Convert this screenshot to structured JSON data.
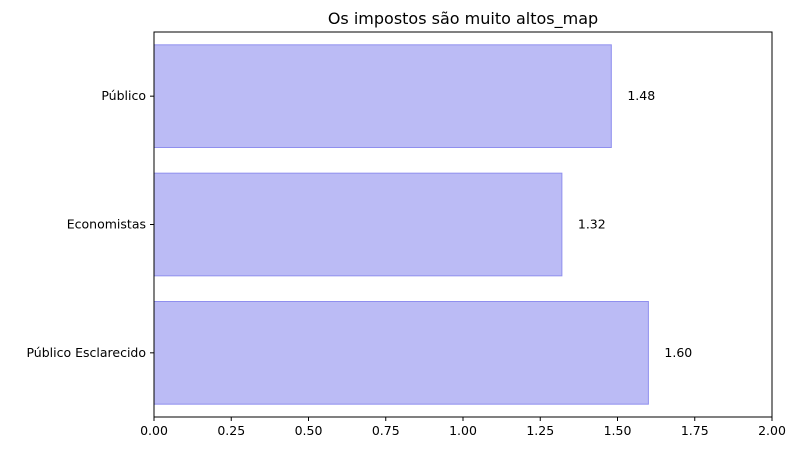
{
  "chart_data": {
    "type": "bar",
    "orientation": "horizontal",
    "title": "Os impostos são muito altos_map",
    "xlabel": "",
    "ylabel": "",
    "categories": [
      "Público",
      "Economistas",
      "Público Esclarecido"
    ],
    "values": [
      1.48,
      1.32,
      1.6
    ],
    "data_labels": [
      "1.48",
      "1.32",
      "1.60"
    ],
    "xlim": [
      0,
      2.0
    ],
    "xticks": [
      0.0,
      0.25,
      0.5,
      0.75,
      1.0,
      1.25,
      1.5,
      1.75,
      2.0
    ],
    "xtick_labels": [
      "0.00",
      "0.25",
      "0.50",
      "0.75",
      "1.00",
      "1.25",
      "1.50",
      "1.75",
      "2.00"
    ],
    "grid": false,
    "colors": {
      "bar_fill": "#bbbbf5",
      "bar_edge": "#8f8fee",
      "axis": "#000000"
    }
  }
}
